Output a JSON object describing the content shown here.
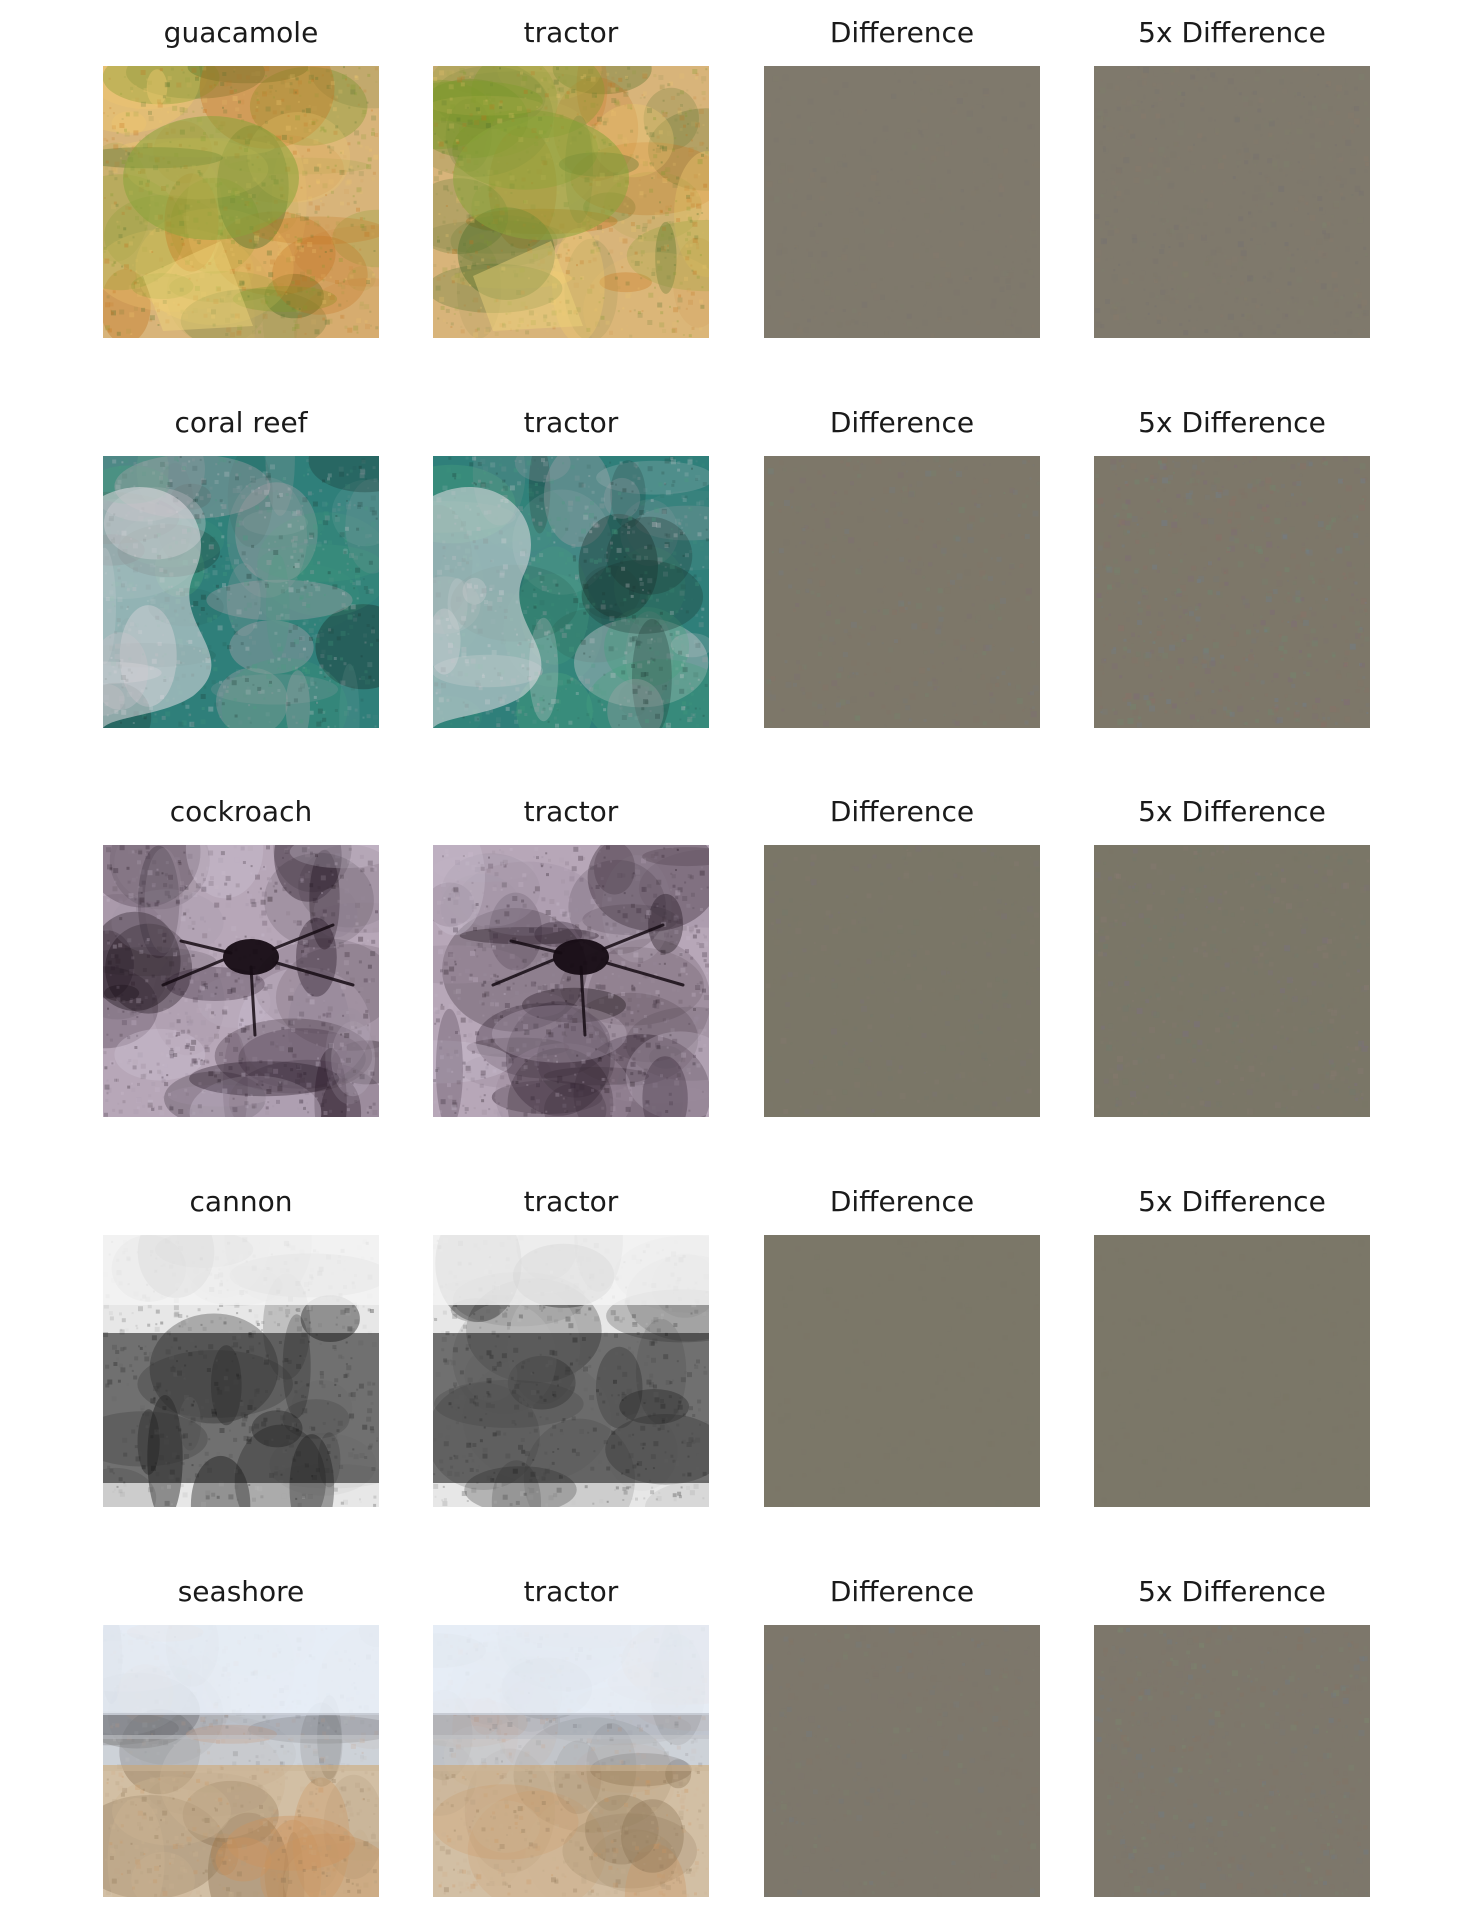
{
  "figure": {
    "rows": [
      {
        "id": "guacamole",
        "titles": [
          "guacamole",
          "tractor",
          "Difference",
          "5x Difference"
        ],
        "theme": {
          "bg": "#d8b47a",
          "accent1": "#7f9b2c",
          "accent2": "#c46f1b",
          "accent3": "#f1c96f",
          "accent4": "#4c6e2a",
          "diff": "#7f796c",
          "diffNoise": [
            "#7d776c",
            "#8a7a6a",
            "#746f70",
            "#7f806b"
          ]
        }
      },
      {
        "id": "coral-reef",
        "titles": [
          "coral reef",
          "tractor",
          "Difference",
          "5x Difference"
        ],
        "theme": {
          "bg": "#2f7f7a",
          "accent1": "#d8d0d6",
          "accent2": "#a9a3aa",
          "accent3": "#1b3430",
          "accent4": "#47a07f",
          "diff": "#7d7769",
          "diffNoise": [
            "#7f6a7a",
            "#6f8a6f",
            "#8d6f66",
            "#6f7f8f"
          ]
        }
      },
      {
        "id": "cockroach",
        "titles": [
          "cockroach",
          "tractor",
          "Difference",
          "5x Difference"
        ],
        "theme": {
          "bg": "#b7a7b8",
          "accent1": "#1a0f18",
          "accent2": "#cbbfd0",
          "accent3": "#9d8e9f",
          "accent4": "#2b1c2a",
          "diff": "#7a7667",
          "diffNoise": [
            "#7f776a",
            "#8a7a72",
            "#6f7c6d",
            "#7c7081"
          ]
        }
      },
      {
        "id": "cannon",
        "titles": [
          "cannon",
          "tractor",
          "Difference",
          "5x Difference"
        ],
        "theme": {
          "bg": "#e7e7e7",
          "accent1": "#151515",
          "accent2": "#5a5a5a",
          "accent3": "#bdbdbd",
          "accent4": "#2d2d2d",
          "diff": "#7b7768",
          "diffNoise": [
            "#7b7768",
            "#7a7567",
            "#7c786a",
            "#797566"
          ]
        }
      },
      {
        "id": "seashore",
        "titles": [
          "seashore",
          "tractor",
          "Difference",
          "5x Difference"
        ],
        "theme": {
          "bg": "#d6dde6",
          "accent1": "#c6c4bf",
          "accent2": "#8c8e8e",
          "accent3": "#c77e4b",
          "accent4": "#2e2c2a",
          "diff": "#7d776b",
          "diffNoise": [
            "#7f766f",
            "#867363",
            "#6f7c86",
            "#7a8a6f"
          ]
        }
      }
    ]
  }
}
